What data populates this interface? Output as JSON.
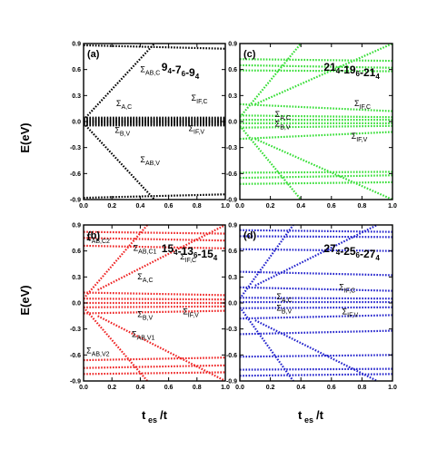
{
  "figure": {
    "ylabel": "E(eV)",
    "xlabel": "t",
    "xlabel_sub": "es",
    "xlabel_tail": "/t"
  },
  "chart_data": [
    {
      "panel": "(a)",
      "title_parts": [
        [
          "9",
          "4"
        ],
        [
          "-7",
          "6"
        ],
        [
          "-9",
          "4"
        ]
      ],
      "color": "#000000",
      "type": "scatter",
      "xlim": [
        0,
        1.0
      ],
      "ylim": [
        -0.9,
        0.9
      ],
      "xticks": [
        "0.0",
        "0.2",
        "0.4",
        "0.6",
        "0.8",
        "1.0"
      ],
      "yticks": [
        "-0.9",
        "-0.6",
        "-0.3",
        "0.0",
        "0.3",
        "0.6",
        "0.9"
      ],
      "bands": [
        {
          "x": [
            0,
            1
          ],
          "y": [
            0.88,
            0.84
          ]
        },
        {
          "x": [
            0,
            1
          ],
          "y": [
            0.045,
            0.045
          ]
        },
        {
          "x": [
            0,
            1
          ],
          "y": [
            0.03,
            0.03
          ]
        },
        {
          "x": [
            0,
            1
          ],
          "y": [
            0.015,
            0.015
          ]
        },
        {
          "x": [
            0,
            1
          ],
          "y": [
            0.005,
            0.005
          ]
        },
        {
          "x": [
            0,
            1
          ],
          "y": [
            -0.005,
            -0.005
          ]
        },
        {
          "x": [
            0,
            1
          ],
          "y": [
            -0.015,
            -0.015
          ]
        },
        {
          "x": [
            0,
            1
          ],
          "y": [
            -0.03,
            -0.03
          ]
        },
        {
          "x": [
            0,
            1
          ],
          "y": [
            -0.045,
            -0.045
          ]
        },
        {
          "x": [
            0,
            0.5
          ],
          "y": [
            0.02,
            0.9
          ]
        },
        {
          "x": [
            0,
            0.5
          ],
          "y": [
            -0.02,
            -0.9
          ]
        },
        {
          "x": [
            0,
            1
          ],
          "y": [
            -0.88,
            -0.84
          ]
        }
      ],
      "annotations": [
        {
          "main": "Σ",
          "sub": "AB,C",
          "x": 0.4,
          "y": 0.57
        },
        {
          "main": "Σ",
          "sub": "A,C",
          "x": 0.23,
          "y": 0.18
        },
        {
          "main": "Σ",
          "sub": "B,V",
          "x": 0.22,
          "y": -0.13
        },
        {
          "main": "Σ",
          "sub": "IF,C",
          "x": 0.76,
          "y": 0.24
        },
        {
          "main": "Σ",
          "sub": "IF,V",
          "x": 0.74,
          "y": -0.11
        },
        {
          "main": "Σ",
          "sub": "AB,V",
          "x": 0.4,
          "y": -0.47
        }
      ]
    },
    {
      "panel": "(c)",
      "title_parts": [
        [
          "21",
          "4"
        ],
        [
          "-19",
          "6"
        ],
        [
          "-21",
          "4"
        ]
      ],
      "color": "#33dd33",
      "type": "scatter",
      "xlim": [
        0,
        1.0
      ],
      "ylim": [
        -0.9,
        0.9
      ],
      "xticks": [
        "0.0",
        "0.2",
        "0.4",
        "0.6",
        "0.8",
        "1.0"
      ],
      "yticks": [
        "-0.9",
        "-0.6",
        "-0.3",
        "0.0",
        "0.3",
        "0.6",
        "0.9"
      ],
      "bands": [
        {
          "x": [
            0,
            1
          ],
          "y": [
            0.72,
            0.7
          ]
        },
        {
          "x": [
            0,
            1
          ],
          "y": [
            0.65,
            0.62
          ]
        },
        {
          "x": [
            0,
            1
          ],
          "y": [
            0.59,
            0.58
          ]
        },
        {
          "x": [
            0,
            1
          ],
          "y": [
            0.2,
            0.12
          ]
        },
        {
          "x": [
            0,
            1
          ],
          "y": [
            0.07,
            0.05
          ]
        },
        {
          "x": [
            0,
            1
          ],
          "y": [
            0.02,
            0.02
          ]
        },
        {
          "x": [
            0,
            1
          ],
          "y": [
            -0.02,
            -0.02
          ]
        },
        {
          "x": [
            0,
            1
          ],
          "y": [
            -0.07,
            -0.05
          ]
        },
        {
          "x": [
            0,
            1
          ],
          "y": [
            -0.2,
            -0.12
          ]
        },
        {
          "x": [
            0,
            1
          ],
          "y": [
            -0.59,
            -0.58
          ]
        },
        {
          "x": [
            0,
            1
          ],
          "y": [
            -0.65,
            -0.62
          ]
        },
        {
          "x": [
            0,
            1
          ],
          "y": [
            -0.72,
            -0.7
          ]
        },
        {
          "x": [
            0,
            0.4
          ],
          "y": [
            0.05,
            0.9
          ]
        },
        {
          "x": [
            0,
            0.4
          ],
          "y": [
            -0.05,
            -0.9
          ]
        },
        {
          "x": [
            0.1,
            1
          ],
          "y": [
            0.2,
            0.9
          ]
        },
        {
          "x": [
            0.1,
            1
          ],
          "y": [
            -0.2,
            -0.9
          ]
        }
      ],
      "annotations": [
        {
          "main": "Σ",
          "sub": "A,C",
          "x": 0.23,
          "y": 0.05
        },
        {
          "main": "Σ",
          "sub": "B,V",
          "x": 0.23,
          "y": -0.06
        },
        {
          "main": "Σ",
          "sub": "IF,C",
          "x": 0.75,
          "y": 0.18
        },
        {
          "main": "Σ",
          "sub": "IF,V",
          "x": 0.73,
          "y": -0.2
        }
      ]
    },
    {
      "panel": "(b)",
      "title_parts": [
        [
          "15",
          "4"
        ],
        [
          "-13",
          "6"
        ],
        [
          "-15",
          "4"
        ]
      ],
      "color": "#ee2222",
      "type": "scatter",
      "xlim": [
        0,
        1.0
      ],
      "ylim": [
        -0.9,
        0.9
      ],
      "xticks": [
        "0.0",
        "0.2",
        "0.4",
        "0.6",
        "0.8",
        "1.0"
      ],
      "yticks": [
        "-0.9",
        "-0.6",
        "-0.3",
        "0.0",
        "0.3",
        "0.6",
        "0.9"
      ],
      "bands": [
        {
          "x": [
            0,
            1
          ],
          "y": [
            0.82,
            0.8
          ]
        },
        {
          "x": [
            0,
            1
          ],
          "y": [
            0.75,
            0.72
          ]
        },
        {
          "x": [
            0,
            1
          ],
          "y": [
            0.66,
            0.63
          ]
        },
        {
          "x": [
            0,
            1
          ],
          "y": [
            0.12,
            0.09
          ]
        },
        {
          "x": [
            0,
            1
          ],
          "y": [
            0.05,
            0.04
          ]
        },
        {
          "x": [
            0,
            1
          ],
          "y": [
            0.0,
            0.0
          ]
        },
        {
          "x": [
            0,
            1
          ],
          "y": [
            -0.05,
            -0.04
          ]
        },
        {
          "x": [
            0,
            1
          ],
          "y": [
            -0.12,
            -0.09
          ]
        },
        {
          "x": [
            0,
            1
          ],
          "y": [
            -0.66,
            -0.63
          ]
        },
        {
          "x": [
            0,
            1
          ],
          "y": [
            -0.75,
            -0.72
          ]
        },
        {
          "x": [
            0,
            1
          ],
          "y": [
            -0.82,
            -0.8
          ]
        },
        {
          "x": [
            0,
            0.45
          ],
          "y": [
            0.05,
            0.9
          ]
        },
        {
          "x": [
            0,
            0.45
          ],
          "y": [
            -0.05,
            -0.9
          ]
        },
        {
          "x": [
            0.1,
            1
          ],
          "y": [
            0.15,
            0.9
          ]
        },
        {
          "x": [
            0.1,
            1
          ],
          "y": [
            -0.15,
            -0.9
          ]
        }
      ],
      "annotations": [
        {
          "main": "Σ",
          "sub": "AB,C2",
          "x": 0.02,
          "y": 0.72
        },
        {
          "main": "Σ",
          "sub": "AB,C1",
          "x": 0.35,
          "y": 0.6
        },
        {
          "main": "Σ",
          "sub": "IF,C",
          "x": 0.68,
          "y": 0.5
        },
        {
          "main": "Σ",
          "sub": "A,C",
          "x": 0.38,
          "y": 0.27
        },
        {
          "main": "Σ",
          "sub": "B,V",
          "x": 0.38,
          "y": -0.16
        },
        {
          "main": "Σ",
          "sub": "IF,V",
          "x": 0.7,
          "y": -0.13
        },
        {
          "main": "Σ",
          "sub": "AB,V1",
          "x": 0.34,
          "y": -0.39
        },
        {
          "main": "Σ",
          "sub": "AB,V2",
          "x": 0.02,
          "y": -0.58
        }
      ]
    },
    {
      "panel": "(d)",
      "title_parts": [
        [
          "27",
          "4"
        ],
        [
          "-25",
          "6"
        ],
        [
          "-27",
          "4"
        ]
      ],
      "color": "#2222cc",
      "type": "scatter",
      "xlim": [
        0,
        1.0
      ],
      "ylim": [
        -0.9,
        0.9
      ],
      "xticks": [
        "0.0",
        "0.2",
        "0.4",
        "0.6",
        "0.8",
        "1.0"
      ],
      "yticks": [
        "-0.9",
        "-0.6",
        "-0.3",
        "0.0",
        "0.3",
        "0.6",
        "0.9"
      ],
      "bands": [
        {
          "x": [
            0,
            1
          ],
          "y": [
            0.84,
            0.82
          ]
        },
        {
          "x": [
            0,
            1
          ],
          "y": [
            0.77,
            0.76
          ]
        },
        {
          "x": [
            0,
            1
          ],
          "y": [
            0.62,
            0.6
          ]
        },
        {
          "x": [
            0,
            1
          ],
          "y": [
            0.36,
            0.32
          ]
        },
        {
          "x": [
            0,
            1
          ],
          "y": [
            0.18,
            0.14
          ]
        },
        {
          "x": [
            0,
            1
          ],
          "y": [
            0.06,
            0.05
          ]
        },
        {
          "x": [
            0,
            1
          ],
          "y": [
            0.01,
            0.01
          ]
        },
        {
          "x": [
            0,
            1
          ],
          "y": [
            -0.06,
            -0.05
          ]
        },
        {
          "x": [
            0,
            1
          ],
          "y": [
            -0.18,
            -0.14
          ]
        },
        {
          "x": [
            0,
            1
          ],
          "y": [
            -0.36,
            -0.32
          ]
        },
        {
          "x": [
            0,
            1
          ],
          "y": [
            -0.62,
            -0.6
          ]
        },
        {
          "x": [
            0,
            1
          ],
          "y": [
            -0.77,
            -0.76
          ]
        },
        {
          "x": [
            0,
            1
          ],
          "y": [
            -0.84,
            -0.82
          ]
        },
        {
          "x": [
            0,
            0.35
          ],
          "y": [
            0.05,
            0.9
          ]
        },
        {
          "x": [
            0,
            0.35
          ],
          "y": [
            -0.05,
            -0.9
          ]
        },
        {
          "x": [
            0.1,
            0.9
          ],
          "y": [
            0.2,
            0.9
          ]
        },
        {
          "x": [
            0.1,
            0.9
          ],
          "y": [
            -0.2,
            -0.9
          ]
        }
      ],
      "annotations": [
        {
          "main": "Σ",
          "sub": "A,C",
          "x": 0.24,
          "y": 0.04
        },
        {
          "main": "Σ",
          "sub": "B,V",
          "x": 0.24,
          "y": -0.09
        },
        {
          "main": "Σ",
          "sub": "IF,C",
          "x": 0.65,
          "y": 0.15
        },
        {
          "main": "Σ",
          "sub": "IF,V",
          "x": 0.67,
          "y": -0.13
        }
      ]
    }
  ]
}
